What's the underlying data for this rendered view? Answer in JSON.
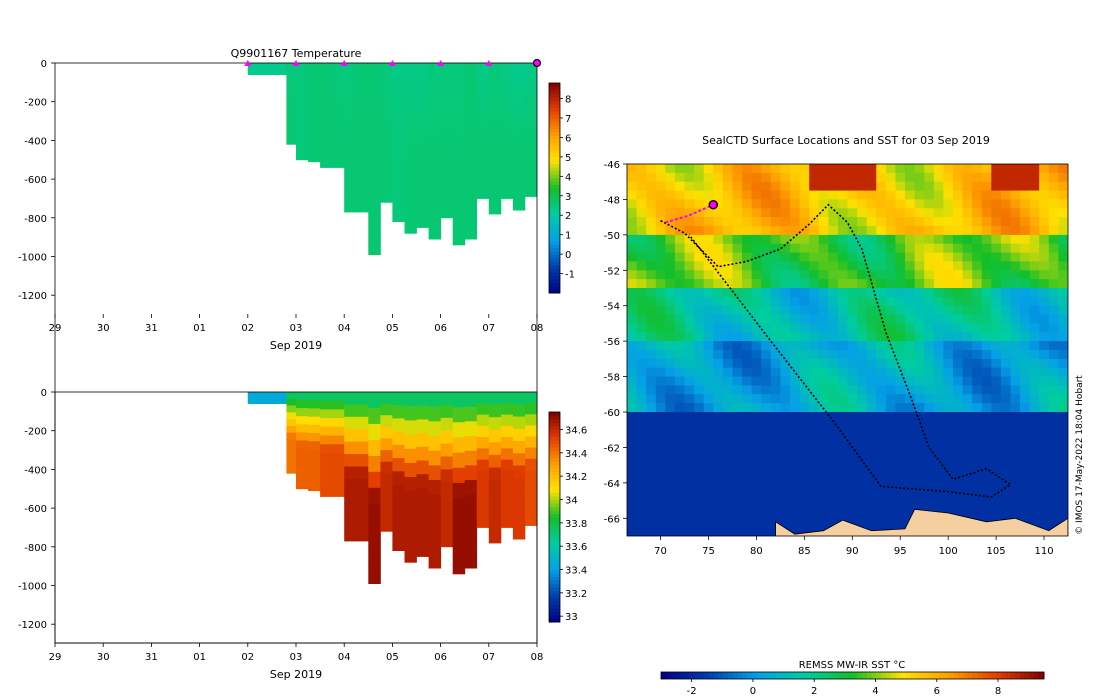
{
  "chart_data": [
    {
      "type": "heatmap",
      "title": "Q9901167  Temperature",
      "xlabel": "Sep 2019",
      "ylabel": "",
      "x_tick_labels": [
        "29",
        "30",
        "31",
        "01",
        "02",
        "03",
        "04",
        "05",
        "06",
        "07",
        "08"
      ],
      "x_days_since_aug29": [
        0,
        1,
        2,
        3,
        4,
        5,
        6,
        7,
        8,
        9,
        10
      ],
      "ylim": [
        -1340,
        0
      ],
      "y_ticks": [
        0,
        -200,
        -400,
        -600,
        -800,
        -1000,
        -1200
      ],
      "colorbar": {
        "min": -2,
        "max": 8.8,
        "ticks": [
          -1,
          0,
          1,
          2,
          3,
          4,
          5,
          6,
          7,
          8
        ]
      },
      "profile_markers_days": [
        4,
        5,
        6,
        7,
        8,
        9
      ],
      "current_marker_day": 10,
      "profiles": [
        {
          "t": 4.0,
          "depth": 60,
          "surface": 2.3,
          "bottom": 2.3
        },
        {
          "t": 4.4,
          "depth": 60,
          "surface": 2.3,
          "bottom": 2.3
        },
        {
          "t": 4.6,
          "depth": 60,
          "surface": 2.3,
          "bottom": 2.3
        },
        {
          "t": 4.8,
          "depth": 420,
          "surface": 2.5,
          "bottom": 2.6
        },
        {
          "t": 5.0,
          "depth": 500,
          "surface": 2.5,
          "bottom": 2.5
        },
        {
          "t": 5.25,
          "depth": 510,
          "surface": 2.6,
          "bottom": 2.6
        },
        {
          "t": 5.5,
          "depth": 540,
          "surface": 2.6,
          "bottom": 2.6
        },
        {
          "t": 5.75,
          "depth": 540,
          "surface": 2.5,
          "bottom": 2.6
        },
        {
          "t": 6.0,
          "depth": 770,
          "surface": 2.5,
          "bottom": 2.6
        },
        {
          "t": 6.25,
          "depth": 770,
          "surface": 2.6,
          "bottom": 2.6
        },
        {
          "t": 6.5,
          "depth": 990,
          "surface": 2.6,
          "bottom": 2.6
        },
        {
          "t": 6.75,
          "depth": 720,
          "surface": 2.5,
          "bottom": 2.6
        },
        {
          "t": 7.0,
          "depth": 820,
          "surface": 2.4,
          "bottom": 2.5
        },
        {
          "t": 7.25,
          "depth": 880,
          "surface": 2.4,
          "bottom": 2.6
        },
        {
          "t": 7.5,
          "depth": 850,
          "surface": 2.4,
          "bottom": 2.6
        },
        {
          "t": 7.75,
          "depth": 910,
          "surface": 2.5,
          "bottom": 2.6
        },
        {
          "t": 8.0,
          "depth": 800,
          "surface": 2.5,
          "bottom": 2.6
        },
        {
          "t": 8.25,
          "depth": 940,
          "surface": 2.5,
          "bottom": 2.6
        },
        {
          "t": 8.5,
          "depth": 910,
          "surface": 2.6,
          "bottom": 2.6
        },
        {
          "t": 8.75,
          "depth": 700,
          "surface": 2.4,
          "bottom": 2.6
        },
        {
          "t": 9.0,
          "depth": 780,
          "surface": 2.5,
          "bottom": 2.6
        },
        {
          "t": 9.25,
          "depth": 700,
          "surface": 2.4,
          "bottom": 2.6
        },
        {
          "t": 9.5,
          "depth": 760,
          "surface": 2.3,
          "bottom": 2.6
        },
        {
          "t": 9.75,
          "depth": 690,
          "surface": 2.4,
          "bottom": 2.6
        }
      ]
    },
    {
      "type": "heatmap",
      "title": "",
      "xlabel": "Sep 2019",
      "ylabel": "",
      "x_tick_labels": [
        "29",
        "30",
        "31",
        "01",
        "02",
        "03",
        "04",
        "05",
        "06",
        "07",
        "08"
      ],
      "x_days_since_aug29": [
        0,
        1,
        2,
        3,
        4,
        5,
        6,
        7,
        8,
        9,
        10
      ],
      "ylim": [
        -1340,
        0
      ],
      "y_ticks": [
        0,
        -200,
        -400,
        -600,
        -800,
        -1000,
        -1200
      ],
      "colorbar": {
        "min": 32.95,
        "max": 34.75,
        "ticks": [
          33,
          33.2,
          33.4,
          33.6,
          33.8,
          34,
          34.2,
          34.4,
          34.6
        ],
        "tick_labels": [
          "33",
          "33.2",
          "33.4",
          "33.6",
          "33.8",
          "34",
          "34.2",
          "34.4",
          "34.6"
        ]
      },
      "profiles": [
        {
          "t": 4.0,
          "depth": 60,
          "surface": 33.45,
          "bottom": 33.45
        },
        {
          "t": 4.4,
          "depth": 60,
          "surface": 33.45,
          "bottom": 33.45
        },
        {
          "t": 4.6,
          "depth": 60,
          "surface": 33.45,
          "bottom": 33.45
        },
        {
          "t": 4.8,
          "depth": 420,
          "surface": 33.75,
          "bottom": 34.4
        },
        {
          "t": 5.0,
          "depth": 500,
          "surface": 33.75,
          "bottom": 34.45
        },
        {
          "t": 5.25,
          "depth": 510,
          "surface": 33.75,
          "bottom": 34.45
        },
        {
          "t": 5.5,
          "depth": 540,
          "surface": 33.75,
          "bottom": 34.5
        },
        {
          "t": 5.75,
          "depth": 540,
          "surface": 33.75,
          "bottom": 34.5
        },
        {
          "t": 6.0,
          "depth": 770,
          "surface": 33.75,
          "bottom": 34.65
        },
        {
          "t": 6.25,
          "depth": 770,
          "surface": 33.75,
          "bottom": 34.65
        },
        {
          "t": 6.5,
          "depth": 990,
          "surface": 33.75,
          "bottom": 34.7
        },
        {
          "t": 6.75,
          "depth": 720,
          "surface": 33.75,
          "bottom": 34.6
        },
        {
          "t": 7.0,
          "depth": 820,
          "surface": 33.75,
          "bottom": 34.65
        },
        {
          "t": 7.25,
          "depth": 880,
          "surface": 33.75,
          "bottom": 34.65
        },
        {
          "t": 7.5,
          "depth": 850,
          "surface": 33.75,
          "bottom": 34.65
        },
        {
          "t": 7.75,
          "depth": 910,
          "surface": 33.75,
          "bottom": 34.65
        },
        {
          "t": 8.0,
          "depth": 800,
          "surface": 33.75,
          "bottom": 34.6
        },
        {
          "t": 8.25,
          "depth": 940,
          "surface": 33.75,
          "bottom": 34.7
        },
        {
          "t": 8.5,
          "depth": 910,
          "surface": 33.75,
          "bottom": 34.7
        },
        {
          "t": 8.75,
          "depth": 700,
          "surface": 33.75,
          "bottom": 34.55
        },
        {
          "t": 9.0,
          "depth": 780,
          "surface": 33.75,
          "bottom": 34.6
        },
        {
          "t": 9.25,
          "depth": 700,
          "surface": 33.75,
          "bottom": 34.55
        },
        {
          "t": 9.5,
          "depth": 760,
          "surface": 33.75,
          "bottom": 34.55
        },
        {
          "t": 9.75,
          "depth": 690,
          "surface": 33.75,
          "bottom": 34.5
        }
      ]
    },
    {
      "type": "heatmap",
      "title": "SealCTD Surface Locations and SST for 03 Sep 2019",
      "xlabel": "",
      "ylabel": "",
      "x_ticks": [
        70,
        75,
        80,
        85,
        90,
        95,
        100,
        105,
        110
      ],
      "y_ticks": [
        -46,
        -48,
        -50,
        -52,
        -54,
        -56,
        -58,
        -60,
        -62,
        -64,
        -66
      ],
      "xlim": [
        66.5,
        112.5
      ],
      "ylim": [
        -67,
        -46
      ],
      "colorbar": {
        "label": "REMSS MW-IR SST °C",
        "min": -3,
        "max": 9.5,
        "ticks": [
          -2,
          0,
          2,
          4,
          6,
          8
        ]
      },
      "sst_zones": [
        {
          "lat_north": -46,
          "lat_south": -50,
          "sst": 5.5
        },
        {
          "lat_north": -50,
          "lat_south": -53,
          "sst": 3.5
        },
        {
          "lat_north": -53,
          "lat_south": -56,
          "sst": 1.5
        },
        {
          "lat_north": -56,
          "lat_south": -60,
          "sst": 0.5
        },
        {
          "lat_north": -60,
          "lat_south": -67,
          "sst": -1.8
        }
      ],
      "track": [
        {
          "lon": 70.0,
          "lat": -49.2
        },
        {
          "lon": 72.5,
          "lat": -49.9
        },
        {
          "lon": 76.0,
          "lat": -51.8
        },
        {
          "lon": 79.0,
          "lat": -51.5
        },
        {
          "lon": 82.5,
          "lat": -50.8
        },
        {
          "lon": 85.5,
          "lat": -49.4
        },
        {
          "lon": 87.5,
          "lat": -48.3
        },
        {
          "lon": 89.5,
          "lat": -49.3
        },
        {
          "lon": 91.0,
          "lat": -50.8
        },
        {
          "lon": 93.5,
          "lat": -55.5
        },
        {
          "lon": 96.0,
          "lat": -59.0
        },
        {
          "lon": 98.0,
          "lat": -62.0
        },
        {
          "lon": 100.5,
          "lat": -63.8
        },
        {
          "lon": 104.0,
          "lat": -63.2
        },
        {
          "lon": 106.5,
          "lat": -64.1
        },
        {
          "lon": 104.5,
          "lat": -64.8
        },
        {
          "lon": 100.0,
          "lat": -64.5
        },
        {
          "lon": 93.0,
          "lat": -64.2
        },
        {
          "lon": 88.0,
          "lat": -60.5
        },
        {
          "lon": 81.5,
          "lat": -56.0
        },
        {
          "lon": 73.0,
          "lat": -50.0
        }
      ],
      "recent_track": [
        {
          "lon": 70.5,
          "lat": -49.3
        },
        {
          "lon": 73.0,
          "lat": -48.9
        },
        {
          "lon": 75.5,
          "lat": -48.3
        }
      ],
      "current_position": {
        "lon": 75.5,
        "lat": -48.3
      },
      "antarctic_coast": [
        {
          "lon": 82.0,
          "lat": -66.2
        },
        {
          "lon": 84.0,
          "lat": -66.9
        },
        {
          "lon": 87.0,
          "lat": -66.7
        },
        {
          "lon": 89.0,
          "lat": -66.1
        },
        {
          "lon": 92.0,
          "lat": -66.7
        },
        {
          "lon": 95.5,
          "lat": -66.6
        },
        {
          "lon": 96.5,
          "lat": -65.5
        },
        {
          "lon": 100.0,
          "lat": -65.7
        },
        {
          "lon": 104.0,
          "lat": -66.2
        },
        {
          "lon": 107.0,
          "lat": -66.0
        },
        {
          "lon": 110.5,
          "lat": -66.7
        },
        {
          "lon": 112.5,
          "lat": -66.0
        }
      ]
    }
  ],
  "colors": {
    "profile_marker": "#ff00ff",
    "track": "#000000",
    "land": "#f6cfa0"
  },
  "credit": "© IMOS 17-May-2022 18:04 Hobart"
}
